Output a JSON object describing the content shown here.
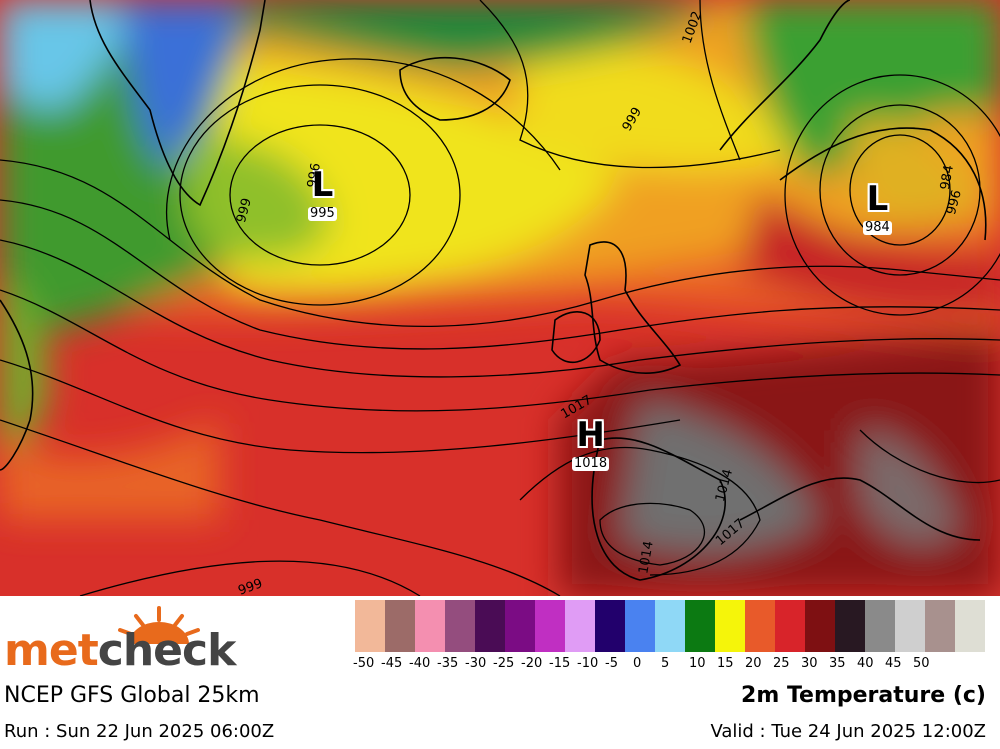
{
  "map": {
    "highs": [
      {
        "letter": "H",
        "value": "1018"
      }
    ],
    "lows": [
      {
        "letter": "L",
        "value": "995"
      },
      {
        "letter": "L",
        "value": "984"
      }
    ],
    "isobar_labels": [
      "1002",
      "999",
      "999",
      "996",
      "1017",
      "1014",
      "1017",
      "1014",
      "984",
      "996",
      "999"
    ]
  },
  "footer": {
    "logo_part1": "met",
    "logo_part2": "check",
    "model": "NCEP GFS Global 25km",
    "run": "Run : Sun 22 Jun 2025 06:00Z",
    "title": "2m Temperature (c)",
    "valid": "Valid : Tue 24 Jun 2025 12:00Z"
  },
  "scale": {
    "colors": [
      "#f2b899",
      "#9c6b68",
      "#f48fb0",
      "#944d7e",
      "#4a0c55",
      "#7b0c84",
      "#c02fc2",
      "#e09cf5",
      "#22006c",
      "#4a82f0",
      "#8fd8f6",
      "#0c7a12",
      "#f5f50a",
      "#e85a2a",
      "#d8242a",
      "#7e1012",
      "#281822",
      "#8a8a8a",
      "#cfcfcf",
      "#a8918e",
      "#deded4"
    ],
    "labels": [
      "-50",
      "-45",
      "-40",
      "-35",
      "-30",
      "-25",
      "-20",
      "-15",
      "-10",
      "-5",
      "0",
      "5",
      "10",
      "15",
      "20",
      "25",
      "30",
      "35",
      "40",
      "45",
      "50"
    ]
  }
}
